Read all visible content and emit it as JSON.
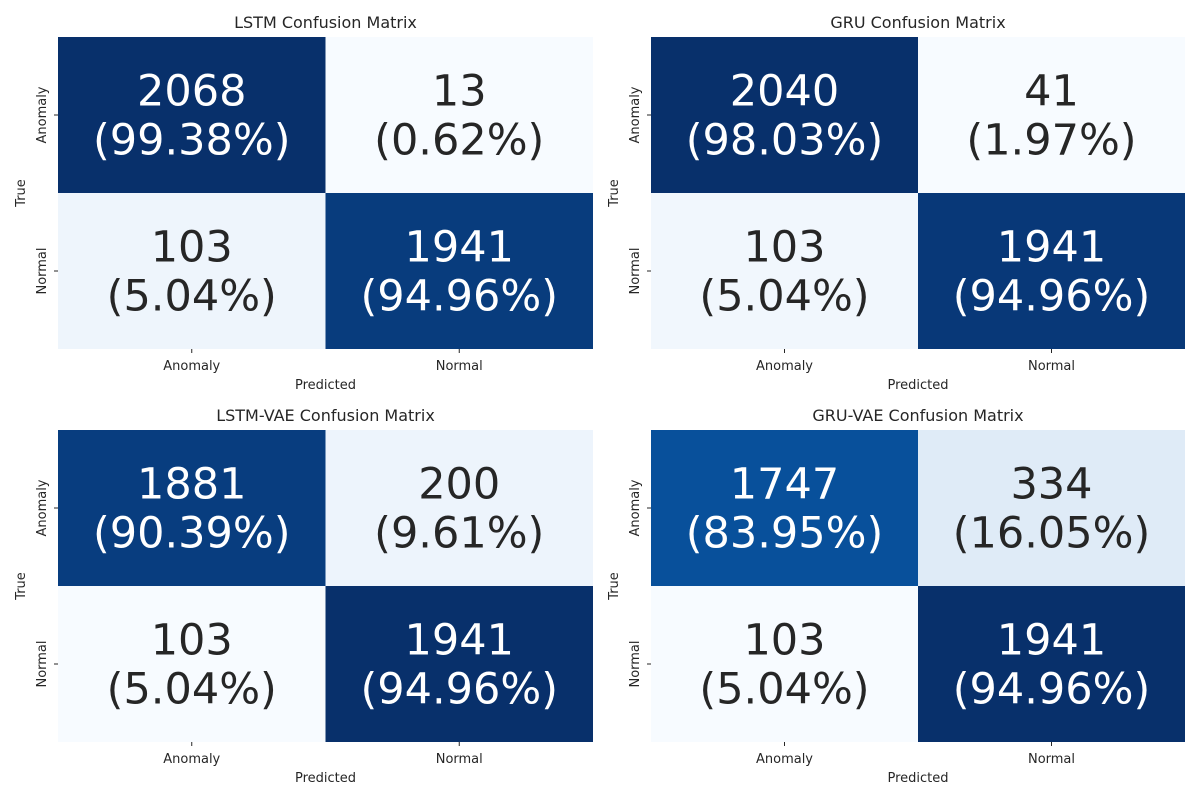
{
  "chart_data": [
    {
      "type": "heatmap",
      "title": "LSTM Confusion Matrix",
      "xlabel": "Predicted",
      "ylabel": "True",
      "x_categories": [
        "Anomaly",
        "Normal"
      ],
      "y_categories": [
        "Anomaly",
        "Normal"
      ],
      "values": [
        [
          2068,
          13
        ],
        [
          103,
          1941
        ]
      ],
      "cell_labels": [
        [
          "2068\n(99.38%)",
          "13\n(0.62%)"
        ],
        [
          "103\n(5.04%)",
          "1941\n(94.96%)"
        ]
      ],
      "color_levels": [
        [
          0.9938,
          0.0062
        ],
        [
          0.0504,
          0.9496
        ]
      ],
      "colormap": "Blues",
      "colorbar": false
    },
    {
      "type": "heatmap",
      "title": "GRU Confusion Matrix",
      "xlabel": "Predicted",
      "ylabel": "True",
      "x_categories": [
        "Anomaly",
        "Normal"
      ],
      "y_categories": [
        "Anomaly",
        "Normal"
      ],
      "values": [
        [
          2040,
          41
        ],
        [
          103,
          1941
        ]
      ],
      "cell_labels": [
        [
          "2040\n(98.03%)",
          "41\n(1.97%)"
        ],
        [
          "103\n(5.04%)",
          "1941\n(94.96%)"
        ]
      ],
      "color_levels": [
        [
          0.9803,
          0.0197
        ],
        [
          0.0504,
          0.9496
        ]
      ],
      "colormap": "Blues",
      "colorbar": false
    },
    {
      "type": "heatmap",
      "title": "LSTM-VAE Confusion Matrix",
      "xlabel": "Predicted",
      "ylabel": "True",
      "x_categories": [
        "Anomaly",
        "Normal"
      ],
      "y_categories": [
        "Anomaly",
        "Normal"
      ],
      "values": [
        [
          1881,
          200
        ],
        [
          103,
          1941
        ]
      ],
      "cell_labels": [
        [
          "1881\n(90.39%)",
          "200\n(9.61%)"
        ],
        [
          "103\n(5.04%)",
          "1941\n(94.96%)"
        ]
      ],
      "color_levels": [
        [
          0.9039,
          0.0961
        ],
        [
          0.0504,
          0.9496
        ]
      ],
      "colormap": "Blues",
      "colorbar": false
    },
    {
      "type": "heatmap",
      "title": "GRU-VAE Confusion Matrix",
      "xlabel": "Predicted",
      "ylabel": "True",
      "x_categories": [
        "Anomaly",
        "Normal"
      ],
      "y_categories": [
        "Anomaly",
        "Normal"
      ],
      "values": [
        [
          1747,
          334
        ],
        [
          103,
          1941
        ]
      ],
      "cell_labels": [
        [
          "1747\n(83.95%)",
          "334\n(16.05%)"
        ],
        [
          "103\n(5.04%)",
          "1941\n(94.96%)"
        ]
      ],
      "color_levels": [
        [
          0.8395,
          0.1605
        ],
        [
          0.0504,
          0.9496
        ]
      ],
      "colormap": "Blues",
      "colorbar": false
    }
  ]
}
